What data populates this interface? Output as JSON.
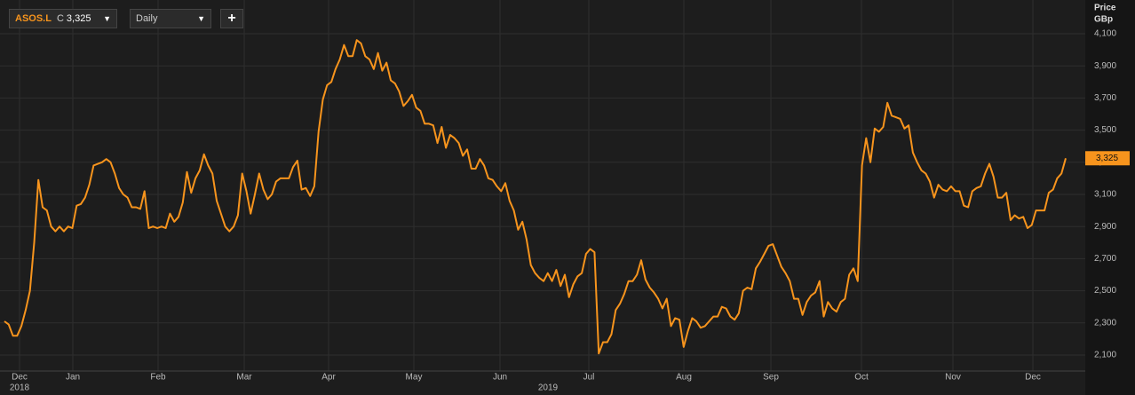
{
  "toolbar": {
    "ticker": "ASOS.L",
    "close_prefix": "C",
    "close_label": "3,325",
    "interval": "Daily",
    "add_button": "+"
  },
  "chart_data": {
    "type": "line",
    "axis_title": [
      "Price",
      "GBp"
    ],
    "x_labels": [
      "Dec",
      "Jan",
      "Feb",
      "Mar",
      "Apr",
      "May",
      "Jun",
      "Jul",
      "Aug",
      "Sep",
      "Oct",
      "Nov",
      "Dec"
    ],
    "year_labels": [
      "2018",
      "2019"
    ],
    "ylim": [
      2020,
      4140
    ],
    "yticks": [
      {
        "value": 2100,
        "label": "2,100"
      },
      {
        "value": 2300,
        "label": "2,300"
      },
      {
        "value": 2500,
        "label": "2,500"
      },
      {
        "value": 2700,
        "label": "2,700"
      },
      {
        "value": 2900,
        "label": "2,900"
      },
      {
        "value": 3100,
        "label": "3,100"
      },
      {
        "value": 3300,
        "label": "3,300"
      },
      {
        "value": 3500,
        "label": "3,500"
      },
      {
        "value": 3700,
        "label": "3,700"
      },
      {
        "value": 3900,
        "label": "3,900"
      },
      {
        "value": 4100,
        "label": "4,100"
      }
    ],
    "grid": true,
    "series": [
      {
        "name": "ASOS.L",
        "color": "#f7941d",
        "last_label": "3,325",
        "values": [
          2310,
          2290,
          2220,
          2220,
          2280,
          2380,
          2500,
          2800,
          3190,
          3020,
          3000,
          2900,
          2870,
          2900,
          2870,
          2900,
          2890,
          3030,
          3040,
          3080,
          3160,
          3280,
          3290,
          3300,
          3320,
          3300,
          3230,
          3140,
          3100,
          3080,
          3020,
          3020,
          3010,
          3120,
          2890,
          2900,
          2890,
          2900,
          2890,
          2980,
          2930,
          2960,
          3050,
          3240,
          3110,
          3200,
          3250,
          3350,
          3280,
          3230,
          3060,
          2980,
          2900,
          2870,
          2900,
          2970,
          3230,
          3120,
          2980,
          3100,
          3230,
          3130,
          3070,
          3100,
          3180,
          3200,
          3200,
          3200,
          3270,
          3310,
          3130,
          3140,
          3090,
          3150,
          3490,
          3690,
          3780,
          3800,
          3880,
          3940,
          4030,
          3960,
          3960,
          4060,
          4040,
          3960,
          3940,
          3880,
          3980,
          3870,
          3920,
          3810,
          3790,
          3740,
          3650,
          3680,
          3720,
          3640,
          3620,
          3540,
          3540,
          3530,
          3420,
          3520,
          3390,
          3470,
          3450,
          3420,
          3340,
          3380,
          3260,
          3260,
          3320,
          3280,
          3200,
          3190,
          3150,
          3120,
          3170,
          3060,
          3000,
          2880,
          2930,
          2820,
          2660,
          2610,
          2580,
          2560,
          2610,
          2560,
          2630,
          2530,
          2600,
          2460,
          2540,
          2590,
          2610,
          2730,
          2760,
          2740,
          2110,
          2180,
          2180,
          2230,
          2380,
          2420,
          2480,
          2560,
          2560,
          2600,
          2690,
          2570,
          2520,
          2490,
          2450,
          2390,
          2450,
          2280,
          2330,
          2320,
          2150,
          2250,
          2330,
          2310,
          2270,
          2280,
          2310,
          2340,
          2340,
          2400,
          2390,
          2340,
          2320,
          2360,
          2500,
          2520,
          2510,
          2640,
          2680,
          2730,
          2780,
          2790,
          2720,
          2650,
          2610,
          2560,
          2450,
          2450,
          2350,
          2430,
          2470,
          2490,
          2560,
          2340,
          2430,
          2390,
          2370,
          2430,
          2450,
          2600,
          2640,
          2560,
          3280,
          3450,
          3300,
          3510,
          3490,
          3520,
          3670,
          3590,
          3580,
          3570,
          3510,
          3530,
          3360,
          3300,
          3250,
          3230,
          3180,
          3080,
          3160,
          3130,
          3120,
          3150,
          3120,
          3120,
          3030,
          3020,
          3120,
          3140,
          3150,
          3230,
          3290,
          3210,
          3080,
          3080,
          3110,
          2940,
          2970,
          2950,
          2960,
          2890,
          2910,
          3000,
          3000,
          3000,
          3110,
          3130,
          3200,
          3230,
          3325
        ]
      }
    ]
  }
}
